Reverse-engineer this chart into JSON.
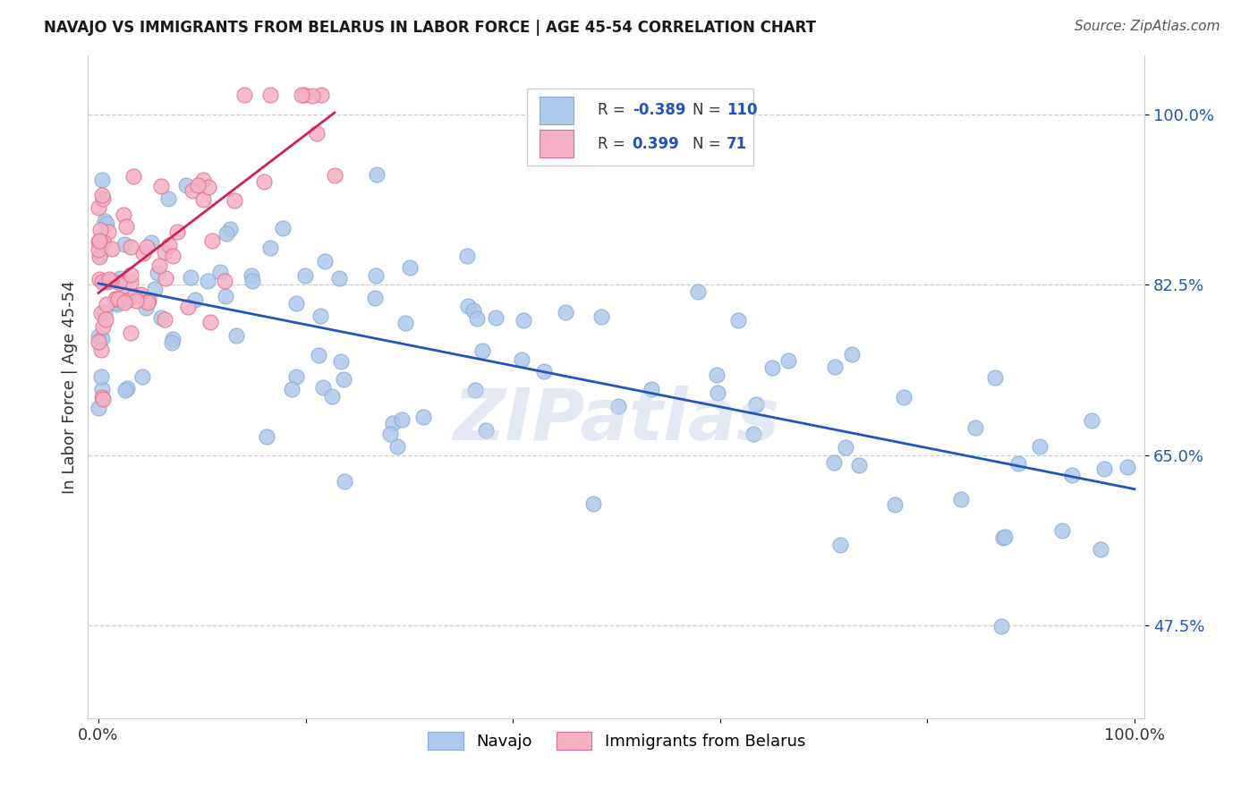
{
  "title": "NAVAJO VS IMMIGRANTS FROM BELARUS IN LABOR FORCE | AGE 45-54 CORRELATION CHART",
  "source": "Source: ZipAtlas.com",
  "ylabel": "In Labor Force | Age 45-54",
  "xlim": [
    -0.01,
    1.01
  ],
  "ylim": [
    0.38,
    1.06
  ],
  "yticks": [
    0.475,
    0.65,
    0.825,
    1.0
  ],
  "ytick_labels": [
    "47.5%",
    "65.0%",
    "82.5%",
    "100.0%"
  ],
  "navajo_color": "#adc9eb",
  "navajo_edge_color": "#85acd6",
  "belarus_color": "#f5b0c5",
  "belarus_edge_color": "#e0708a",
  "trend_blue": "#2255bb",
  "trend_pink": "#cc2255",
  "R_blue_str": "-0.389",
  "N_blue_str": "110",
  "R_pink_str": "0.399",
  "N_pink_str": "71",
  "watermark": "ZIPatlas",
  "grid_color": "#cccccc",
  "marker_size": 150
}
